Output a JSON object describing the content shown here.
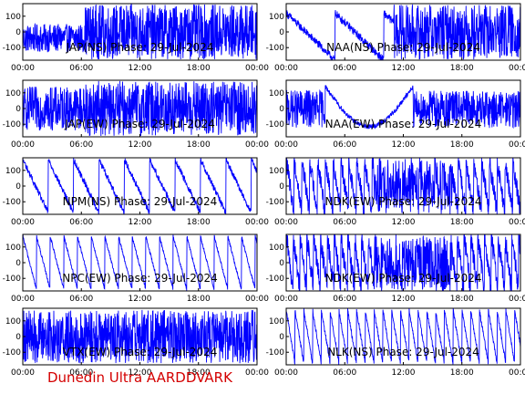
{
  "caption": "Dunedin Ultra AARDDVARK",
  "colors": {
    "trace": "#0000ff",
    "caption": "#d40000",
    "frame": "#000000"
  },
  "chart_data": [
    {
      "type": "line",
      "title": "JAP(NS) Phase: 29-Jul-2024",
      "xticks": [
        "00:00",
        "06:00",
        "12:00",
        "18:00",
        "00:00"
      ],
      "yticks": [
        100,
        0,
        -100
      ],
      "ylim": [
        -180,
        180
      ],
      "xlim_hours": [
        0,
        24
      ],
      "trace": {
        "style": "noisy-then-saturated",
        "saturated_from_hour": 6.4,
        "level": -40,
        "noise": 90
      }
    },
    {
      "type": "line",
      "title": "NAA(NS) Phase: 29-Jul-2024",
      "xticks": [
        "00:00",
        "06:00",
        "12:00",
        "18:00",
        "00:00"
      ],
      "yticks": [
        100,
        0,
        -100
      ],
      "ylim": [
        -180,
        180
      ],
      "xlim_hours": [
        0,
        24
      ],
      "trace": {
        "style": "drift-then-dense",
        "dense_from_hour": 11.0,
        "level": 0,
        "noise": 160
      }
    },
    {
      "type": "line",
      "title": "JAP(EW) Phase: 29-Jul-2024",
      "xticks": [
        "00:00",
        "06:00",
        "12:00",
        "18:00",
        "00:00"
      ],
      "yticks": [
        100,
        0,
        -100
      ],
      "ylim": [
        -180,
        180
      ],
      "xlim_hours": [
        0,
        24
      ],
      "trace": {
        "style": "noisy-then-saturated",
        "saturated_from_hour": 6.4,
        "level": 0,
        "noise": 140
      }
    },
    {
      "type": "line",
      "title": "NAA(EW) Phase: 29-Jul-2024",
      "xticks": [
        "00:00",
        "06:00",
        "12:00",
        "18:00",
        "00:00"
      ],
      "yticks": [
        100,
        0,
        -100
      ],
      "ylim": [
        -180,
        180
      ],
      "xlim_hours": [
        0,
        24
      ],
      "trace": {
        "style": "arc",
        "level": 0,
        "noise": 120
      }
    },
    {
      "type": "line",
      "title": "NPM(NS) Phase: 29-Jul-2024",
      "xticks": [
        "00:00",
        "06:00",
        "12:00",
        "18:00",
        "00:00"
      ],
      "yticks": [
        100,
        0,
        -100
      ],
      "ylim": [
        -180,
        180
      ],
      "xlim_hours": [
        0,
        24
      ],
      "trace": {
        "style": "sawtooth-sparse",
        "period_hours": 2.6,
        "level": 0,
        "noise": 20
      }
    },
    {
      "type": "line",
      "title": "NDK(EW) Phase: 29-Jul-2024",
      "xticks": [
        "00:00",
        "06:00",
        "12:00",
        "18:00",
        "00:00"
      ],
      "yticks": [
        100,
        0,
        -100
      ],
      "ylim": [
        -180,
        180
      ],
      "xlim_hours": [
        0,
        24
      ],
      "trace": {
        "style": "sawtooth-dense",
        "period_hours": 0.8,
        "level": 0,
        "noise": 60
      }
    },
    {
      "type": "line",
      "title": "NPC(EW) Phase: 29-Jul-2024",
      "xticks": [
        "00:00",
        "06:00",
        "12:00",
        "18:00",
        "00:00"
      ],
      "yticks": [
        100,
        0,
        -100
      ],
      "ylim": [
        -180,
        180
      ],
      "xlim_hours": [
        0,
        24
      ],
      "trace": {
        "style": "sawtooth-sparse",
        "period_hours": 1.4,
        "level": 0,
        "noise": 10
      }
    },
    {
      "type": "line",
      "title": "NDK(EW) Phase: 29-Jul-2024",
      "xticks": [
        "00:00",
        "06:00",
        "12:00",
        "18:00",
        "00:00"
      ],
      "yticks": [
        100,
        0,
        -100
      ],
      "ylim": [
        -180,
        180
      ],
      "xlim_hours": [
        0,
        24
      ],
      "trace": {
        "style": "sawtooth-dense",
        "period_hours": 0.7,
        "level": 0,
        "noise": 70
      }
    },
    {
      "type": "line",
      "title": "VTX(EW) Phase: 29-Jul-2024",
      "xticks": [
        "00:00",
        "06:00",
        "12:00",
        "18:00",
        "00:00"
      ],
      "yticks": [
        100,
        0,
        -100
      ],
      "ylim": [
        -180,
        180
      ],
      "xlim_hours": [
        0,
        24
      ],
      "trace": {
        "style": "dense-full",
        "level": 0,
        "noise": 170
      }
    },
    {
      "type": "line",
      "title": "NLK(NS) Phase: 29-Jul-2024",
      "xticks": [
        "00:00",
        "06:00",
        "12:00",
        "18:00",
        "00:00"
      ],
      "yticks": [
        100,
        0,
        -100
      ],
      "ylim": [
        -180,
        180
      ],
      "xlim_hours": [
        0,
        24
      ],
      "trace": {
        "style": "sawtooth-sparse",
        "period_hours": 0.9,
        "level": 0,
        "noise": 15
      }
    }
  ]
}
